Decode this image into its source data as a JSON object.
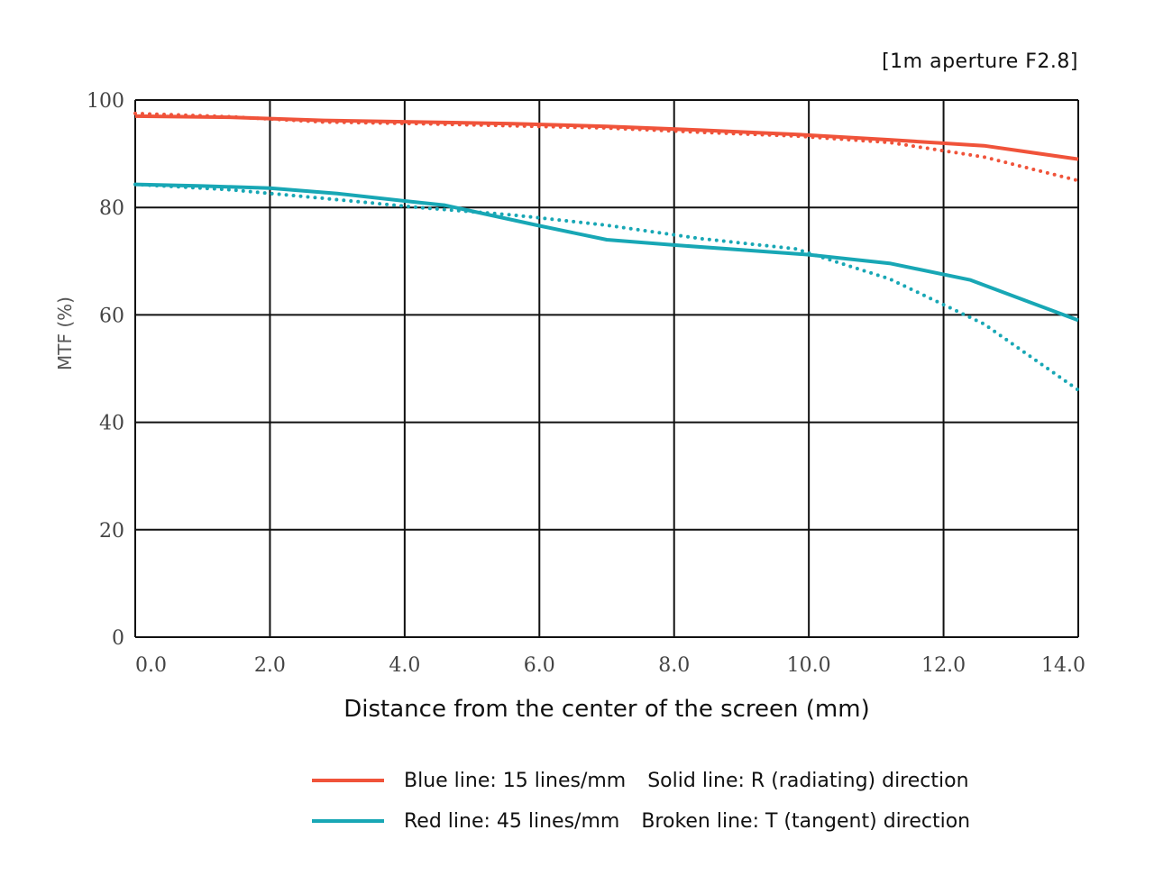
{
  "colors": {
    "red": "#f0533a",
    "teal": "#18a7b5",
    "grid": "#111111"
  },
  "legend": {
    "row1_color_text": "Blue line: 15 lines/mm",
    "row1_style_text": "Solid line: R (radiating) direction",
    "row2_color_text": "Red line: 45 lines/mm",
    "row2_style_text": "Broken line: T (tangent) direction"
  },
  "chart_data": {
    "type": "line",
    "title": "[1m aperture F2.8]",
    "xlabel": "Distance from the center of the screen (mm)",
    "ylabel": "MTF (%)",
    "xlim": [
      0,
      14.0
    ],
    "ylim": [
      0,
      100
    ],
    "x_ticks": [
      "0.0",
      "2.0",
      "4.0",
      "6.0",
      "8.0",
      "10.0",
      "12.0",
      "14.0"
    ],
    "y_ticks": [
      "0",
      "20",
      "40",
      "60",
      "80",
      "100"
    ],
    "grid": true,
    "legend_position": "bottom",
    "series": [
      {
        "color": "#f0533a",
        "style": "solid",
        "x": [
          0,
          1.4,
          2.8,
          4.2,
          5.6,
          7.0,
          8.4,
          9.8,
          11.2,
          12.6,
          14.0
        ],
        "y": [
          97,
          96.8,
          96.2,
          95.9,
          95.6,
          95.1,
          94.4,
          93.6,
          92.6,
          91.5,
          89
        ]
      },
      {
        "color": "#f0533a",
        "style": "dotted",
        "x": [
          0,
          1.4,
          2.8,
          4.2,
          5.6,
          7.0,
          8.4,
          9.8,
          11.2,
          12.6,
          14.0
        ],
        "y": [
          97.5,
          96.9,
          95.9,
          95.6,
          95.2,
          94.8,
          94.0,
          93.3,
          92.1,
          89.4,
          85
        ]
      },
      {
        "color": "#18a7b5",
        "style": "solid",
        "x": [
          0,
          1.0,
          2.0,
          3.0,
          4.0,
          4.6,
          6.0,
          7.0,
          8.0,
          9.0,
          10.0,
          11.2,
          12.4,
          14.0
        ],
        "y": [
          84.3,
          84.0,
          83.6,
          82.6,
          81.2,
          80.4,
          76.6,
          74.0,
          73.0,
          72.1,
          71.2,
          69.6,
          66.5,
          59
        ]
      },
      {
        "color": "#18a7b5",
        "style": "dotted",
        "x": [
          0,
          1.4,
          2.8,
          4.2,
          5.6,
          7.0,
          8.4,
          9.8,
          11.2,
          12.6,
          14.0
        ],
        "y": [
          84.3,
          83.3,
          81.7,
          80.0,
          78.6,
          76.7,
          74.2,
          72.3,
          66.7,
          58.3,
          46
        ]
      }
    ]
  }
}
